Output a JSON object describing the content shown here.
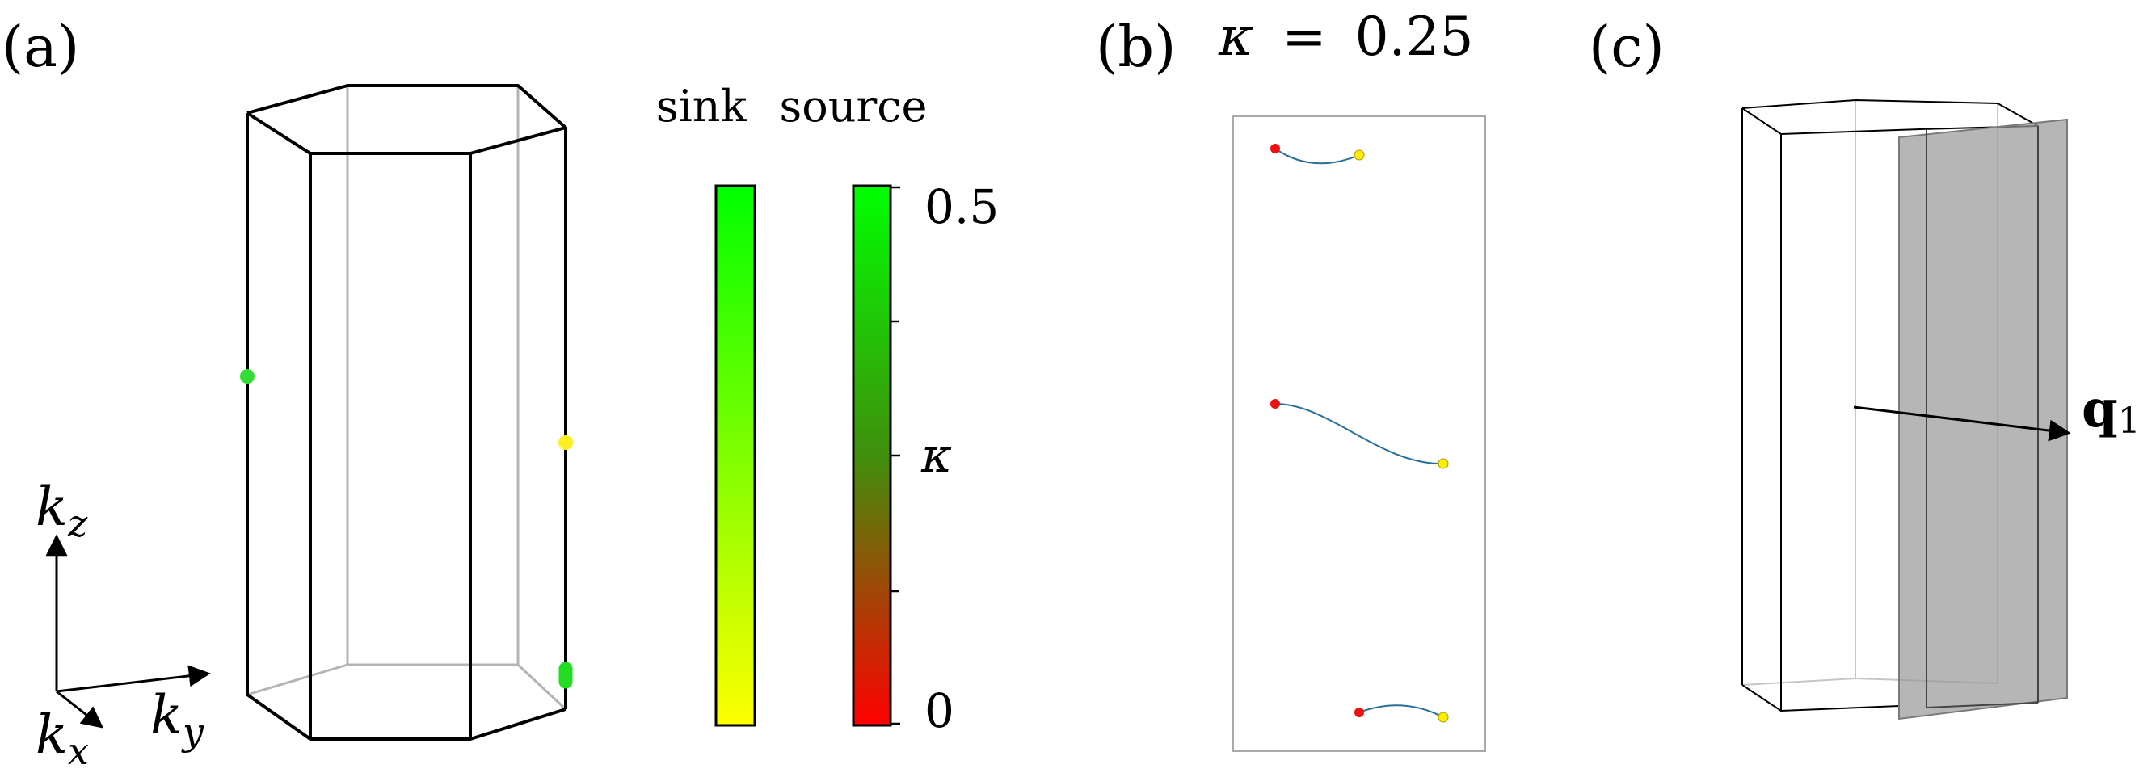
{
  "panels": {
    "a": {
      "label": "(a)"
    },
    "b": {
      "label": "(b)",
      "title_kappa": "κ",
      "title_equals": "=",
      "title_value": "0.25"
    },
    "c": {
      "label": "(c)"
    }
  },
  "axes_triad": {
    "kz": {
      "base": "k",
      "sub": "z"
    },
    "kx": {
      "base": "k",
      "sub": "x"
    },
    "ky": {
      "base": "k",
      "sub": "y"
    }
  },
  "colorbars": {
    "sink": {
      "label": "sink",
      "top_color": "#00ff00",
      "bottom_color": "#ffff00"
    },
    "source": {
      "label": "source",
      "top_color": "#00ff00",
      "bottom_color": "#ff0000"
    },
    "tick_top": "0.5",
    "tick_mid": "κ",
    "tick_bottom": "0"
  },
  "vector_label": {
    "base": "q",
    "sub": "1"
  },
  "colors": {
    "source_point": "#ee1111",
    "sink_point": "#ffee00",
    "curve": "#2a6f9a",
    "plane": "#9a9a9a"
  }
}
